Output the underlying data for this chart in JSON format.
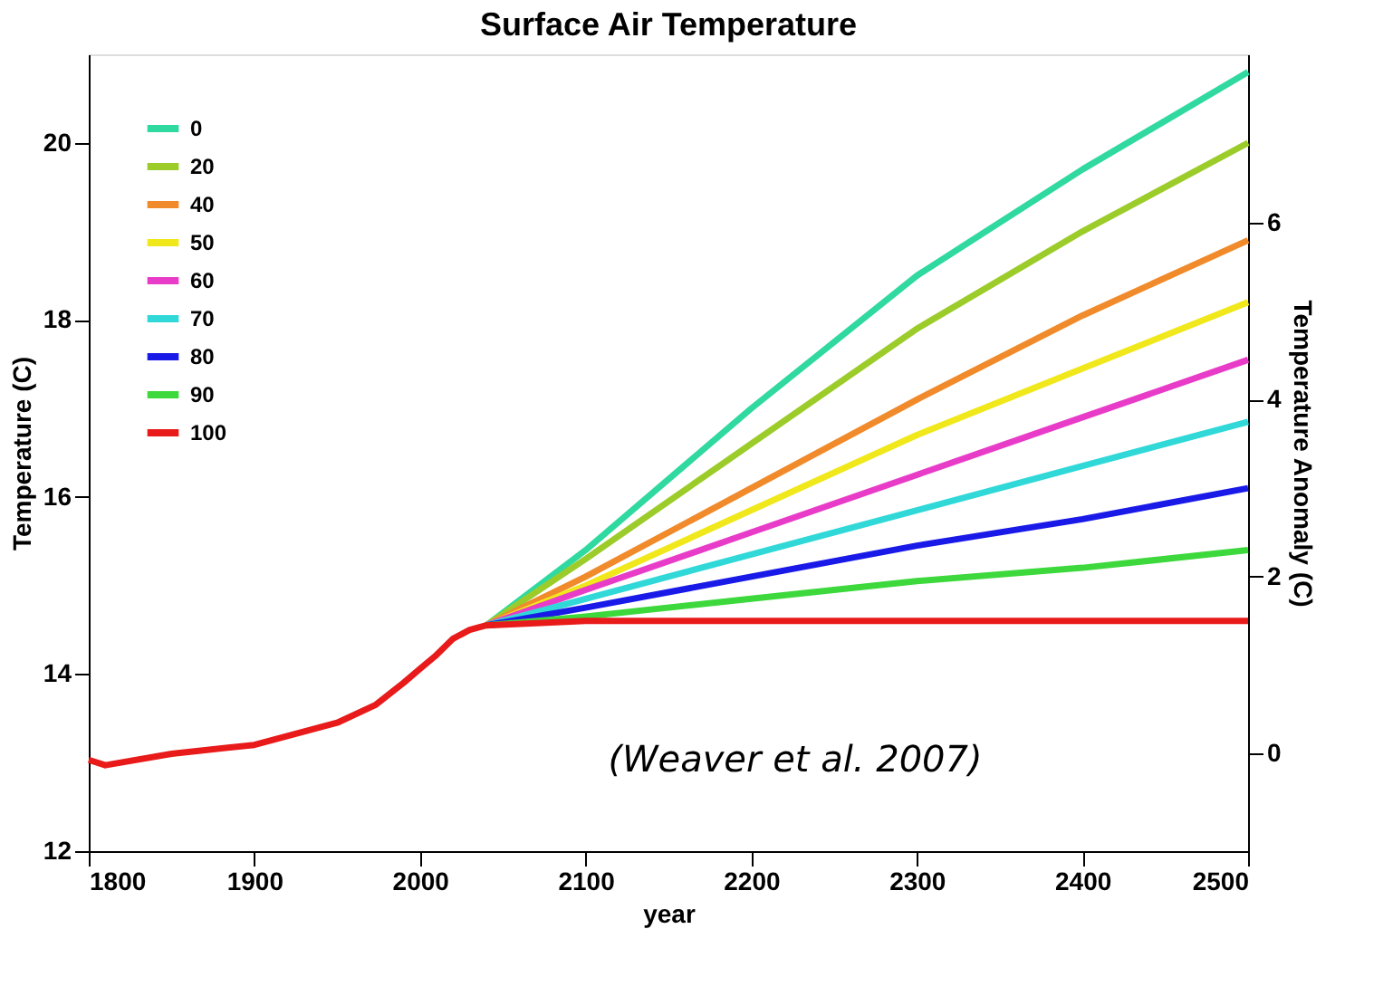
{
  "chart_data": {
    "type": "line",
    "title": "Surface Air Temperature",
    "xlabel": "year",
    "ylabel": "Temperature (C)",
    "y2label": "Temperature Anomaly (C)",
    "xlim": [
      1800,
      2500
    ],
    "xticks": [
      1800,
      1900,
      2000,
      2100,
      2200,
      2300,
      2400,
      2500
    ],
    "ylim": [
      12,
      21
    ],
    "yticks": [
      12,
      14,
      16,
      18,
      20
    ],
    "y2lim": [
      -1.1,
      7.9
    ],
    "y2ticks": [
      0,
      2,
      4,
      6
    ],
    "grid": false,
    "legend": "top left",
    "line_style": "solid",
    "marker": "none",
    "annotations": [
      "(Weaver et al. 2007)"
    ],
    "series": [
      {
        "name": "0",
        "color": "#2fd9a0",
        "x": [
          2040,
          2100,
          2200,
          2300,
          2400,
          2500
        ],
        "values": [
          14.55,
          15.4,
          17.0,
          18.5,
          19.7,
          20.8
        ]
      },
      {
        "name": "20",
        "color": "#9ccc2a",
        "x": [
          2040,
          2100,
          2200,
          2300,
          2400,
          2500
        ],
        "values": [
          14.55,
          15.3,
          16.6,
          17.9,
          19.0,
          20.0
        ]
      },
      {
        "name": "40",
        "color": "#f08a2a",
        "x": [
          2040,
          2100,
          2200,
          2300,
          2400,
          2500
        ],
        "values": [
          14.55,
          15.1,
          16.1,
          17.1,
          18.05,
          18.9
        ]
      },
      {
        "name": "50",
        "color": "#f0e81a",
        "x": [
          2040,
          2100,
          2200,
          2300,
          2400,
          2500
        ],
        "values": [
          14.55,
          15.0,
          15.85,
          16.7,
          17.45,
          18.2
        ]
      },
      {
        "name": "60",
        "color": "#e83cc8",
        "x": [
          2040,
          2100,
          2200,
          2300,
          2400,
          2500
        ],
        "values": [
          14.55,
          14.95,
          15.6,
          16.25,
          16.9,
          17.55
        ]
      },
      {
        "name": "70",
        "color": "#30d8d8",
        "x": [
          2040,
          2100,
          2200,
          2300,
          2400,
          2500
        ],
        "values": [
          14.55,
          14.85,
          15.35,
          15.85,
          16.35,
          16.85
        ]
      },
      {
        "name": "80",
        "color": "#1a1ae8",
        "x": [
          2040,
          2100,
          2200,
          2300,
          2400,
          2500
        ],
        "values": [
          14.55,
          14.75,
          15.1,
          15.45,
          15.75,
          16.1
        ]
      },
      {
        "name": "90",
        "color": "#3cd83c",
        "x": [
          2040,
          2100,
          2200,
          2300,
          2400,
          2500
        ],
        "values": [
          14.55,
          14.65,
          14.85,
          15.05,
          15.2,
          15.4
        ]
      },
      {
        "name": "100",
        "color": "#e81a1a",
        "x": [
          1800,
          1810,
          1850,
          1900,
          1950,
          1973,
          1990,
          2000,
          2009,
          2020,
          2030,
          2040,
          2100,
          2200,
          2300,
          2400,
          2500
        ],
        "values": [
          13.03,
          12.97,
          13.1,
          13.2,
          13.45,
          13.65,
          13.9,
          14.06,
          14.2,
          14.4,
          14.5,
          14.55,
          14.6,
          14.6,
          14.6,
          14.6,
          14.6
        ]
      }
    ]
  }
}
